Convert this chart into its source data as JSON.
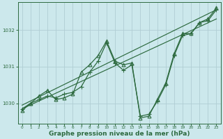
{
  "bg_color": "#cce8ec",
  "grid_color": "#b0cdd4",
  "line_color": "#2d6a3f",
  "xlabel": "Graphe pression niveau de la mer (hPa)",
  "xlabel_fontsize": 6.5,
  "xlim": [
    -0.5,
    23.5
  ],
  "ylim": [
    1029.45,
    1032.75
  ],
  "yticks": [
    1030,
    1031,
    1032
  ],
  "xticks": [
    0,
    1,
    2,
    3,
    4,
    5,
    6,
    7,
    8,
    9,
    10,
    11,
    12,
    13,
    14,
    15,
    16,
    17,
    18,
    19,
    20,
    21,
    22,
    23
  ],
  "series": [
    {
      "x": [
        0,
        1,
        2,
        3,
        4,
        5,
        6,
        7,
        8,
        9,
        10,
        11,
        12,
        13,
        14,
        15,
        16,
        17,
        18,
        19,
        20,
        21,
        22,
        23
      ],
      "y": [
        1029.85,
        1030.0,
        1030.1,
        1030.2,
        1030.15,
        1030.25,
        1030.3,
        1030.45,
        1030.85,
        1031.15,
        1031.65,
        1031.1,
        1030.9,
        1031.05,
        1029.65,
        1029.7,
        1030.05,
        1030.5,
        1031.3,
        1031.85,
        1031.9,
        1032.2,
        1032.25,
        1032.55
      ],
      "marker": "+",
      "markersize": 4,
      "lw": 0.9
    },
    {
      "x": [
        0,
        1,
        2,
        3,
        4,
        5,
        6,
        7,
        8,
        9,
        10,
        11,
        12,
        13,
        14,
        15,
        16,
        17,
        18,
        19,
        20,
        21,
        22,
        23
      ],
      "y": [
        1029.8,
        1030.0,
        1030.2,
        1030.35,
        1030.1,
        1030.15,
        1030.25,
        1030.85,
        1031.05,
        1031.3,
        1031.7,
        1031.15,
        1031.05,
        1031.1,
        1029.6,
        1029.65,
        1030.1,
        1030.55,
        1031.35,
        1031.9,
        1031.9,
        1032.2,
        1032.3,
        1032.6
      ],
      "marker": "^",
      "markersize": 3.5,
      "lw": 0.9
    },
    {
      "x": [
        0,
        23
      ],
      "y": [
        1029.85,
        1032.3
      ],
      "marker": null,
      "markersize": 0,
      "lw": 0.85
    },
    {
      "x": [
        0,
        23
      ],
      "y": [
        1029.95,
        1032.55
      ],
      "marker": null,
      "markersize": 0,
      "lw": 0.85
    }
  ]
}
